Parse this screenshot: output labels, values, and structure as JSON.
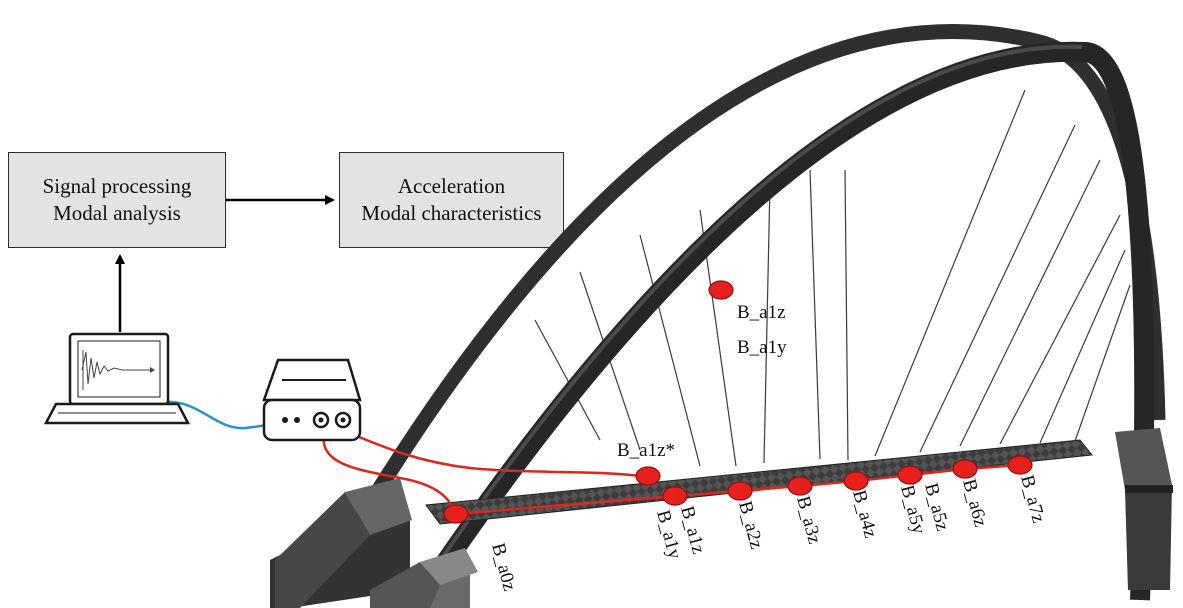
{
  "boxes": {
    "processing": {
      "line1": "Signal processing",
      "line2": "Modal analysis"
    },
    "results": {
      "line1": "Acceleration",
      "line2": "Modal characteristics"
    }
  },
  "sensors": {
    "arch_z": "B_a1z",
    "arch_y": "B_a1y",
    "deck_star": "B_a1z*",
    "a0z": "B_a0z",
    "a1y": "B_a1y",
    "a1z": "B_a1z",
    "a2z": "B_a2z",
    "a3z": "B_a3z",
    "a4z": "B_a4z",
    "a5y": "B_a5y",
    "a5z": "B_a5z",
    "a6z": "B_a6z",
    "a7z": "B_a7z"
  },
  "colors": {
    "sensor": "#e8201d",
    "cable_red": "#d9281f",
    "cable_blue": "#2f8fc6",
    "structure": "#2f2f2f",
    "box_fill": "#e3e3e3"
  },
  "icons": [
    "laptop-icon",
    "data-acquisition-device-icon"
  ]
}
